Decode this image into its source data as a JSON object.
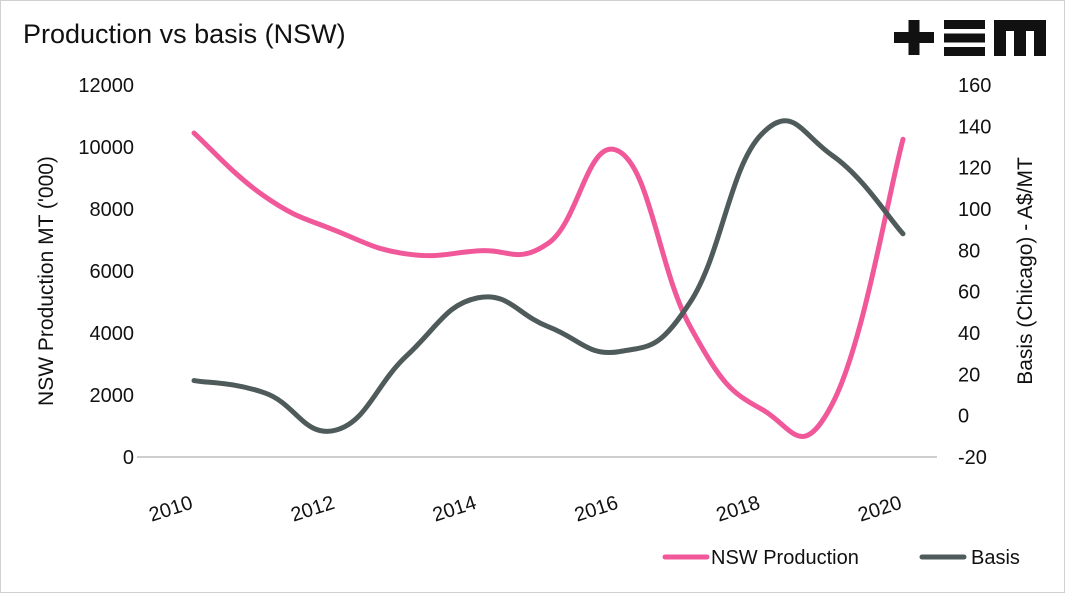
{
  "header": {
    "title": "Production vs basis (NSW)",
    "logo_text": "+EM"
  },
  "colors": {
    "production": "#f0589a",
    "basis": "#4f5a5a",
    "axis": "#bfbfbf",
    "text": "#111111",
    "logo": "#111111"
  },
  "chart_data": {
    "type": "line",
    "title": "Production vs basis (NSW)",
    "x": [
      2010,
      2011,
      2012,
      2013,
      2014,
      2015,
      2016,
      2017,
      2018,
      2019,
      2020
    ],
    "x_ticks": [
      "2010",
      "2012",
      "2014",
      "2016",
      "2018",
      "2020"
    ],
    "xlim": [
      2010,
      2020
    ],
    "ylabel": "NSW Production MT ('000)",
    "ylim": [
      0,
      12000
    ],
    "y_ticks": [
      "0",
      "2000",
      "4000",
      "6000",
      "8000",
      "10000",
      "12000"
    ],
    "y2label": "Basis (Chicago) - A$/MT",
    "y2lim": [
      -20,
      160
    ],
    "y2_ticks": [
      "-20",
      "0",
      "20",
      "40",
      "60",
      "80",
      "100",
      "120",
      "140",
      "160"
    ],
    "grid": false,
    "legend_position": "bottom-right",
    "series": [
      {
        "name": "NSW Production",
        "axis": "left",
        "values": [
          10450,
          8400,
          7300,
          6550,
          6650,
          6900,
          9850,
          4200,
          1550,
          1700,
          10250
        ]
      },
      {
        "name": "Basis",
        "axis": "right",
        "values": [
          17,
          11,
          -7,
          29,
          57,
          43,
          31,
          55,
          136,
          126,
          88
        ]
      }
    ]
  }
}
